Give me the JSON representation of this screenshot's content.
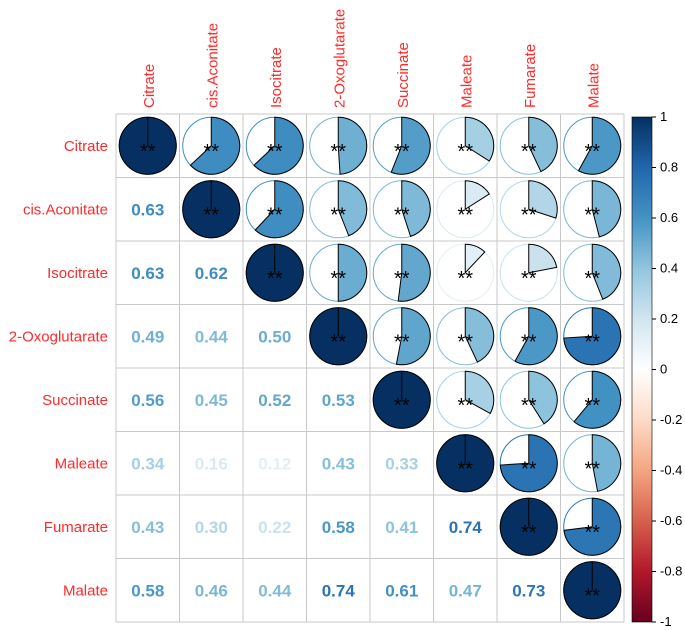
{
  "chart_data": {
    "type": "heatmap",
    "variables": [
      "Citrate",
      "cis.Aconitate",
      "Isocitrate",
      "2-Oxoglutarate",
      "Succinate",
      "Maleate",
      "Fumarate",
      "Malate"
    ],
    "matrix": [
      [
        1.0,
        0.63,
        0.63,
        0.49,
        0.56,
        0.34,
        0.43,
        0.58
      ],
      [
        0.63,
        1.0,
        0.62,
        0.44,
        0.45,
        0.16,
        0.3,
        0.46
      ],
      [
        0.63,
        0.62,
        1.0,
        0.5,
        0.52,
        0.12,
        0.22,
        0.44
      ],
      [
        0.49,
        0.44,
        0.5,
        1.0,
        0.53,
        0.43,
        0.58,
        0.74
      ],
      [
        0.56,
        0.45,
        0.52,
        0.53,
        1.0,
        0.33,
        0.41,
        0.61
      ],
      [
        0.34,
        0.16,
        0.12,
        0.43,
        0.33,
        1.0,
        0.74,
        0.47
      ],
      [
        0.43,
        0.3,
        0.22,
        0.58,
        0.41,
        0.74,
        1.0,
        0.73
      ],
      [
        0.58,
        0.46,
        0.44,
        0.74,
        0.61,
        0.47,
        0.73,
        1.0
      ]
    ],
    "lower_triangle": "number",
    "upper_triangle": "pie",
    "significance_marker": "**",
    "colorbar": {
      "range": [
        -1,
        1
      ],
      "ticks": [
        "1",
        "0.8",
        "0.6",
        "0.4",
        "0.2",
        "0",
        "-0.2",
        "-0.4",
        "-0.6",
        "-0.8",
        "-1"
      ],
      "colors": [
        "#67001f",
        "#b2182b",
        "#d6604d",
        "#f4a582",
        "#fddbc7",
        "#ffffff",
        "#d1e5f0",
        "#92c5de",
        "#4393c3",
        "#2166ac",
        "#053061"
      ]
    },
    "label_color": "#ff2a2a",
    "grid_color": "#c8c8c8"
  }
}
